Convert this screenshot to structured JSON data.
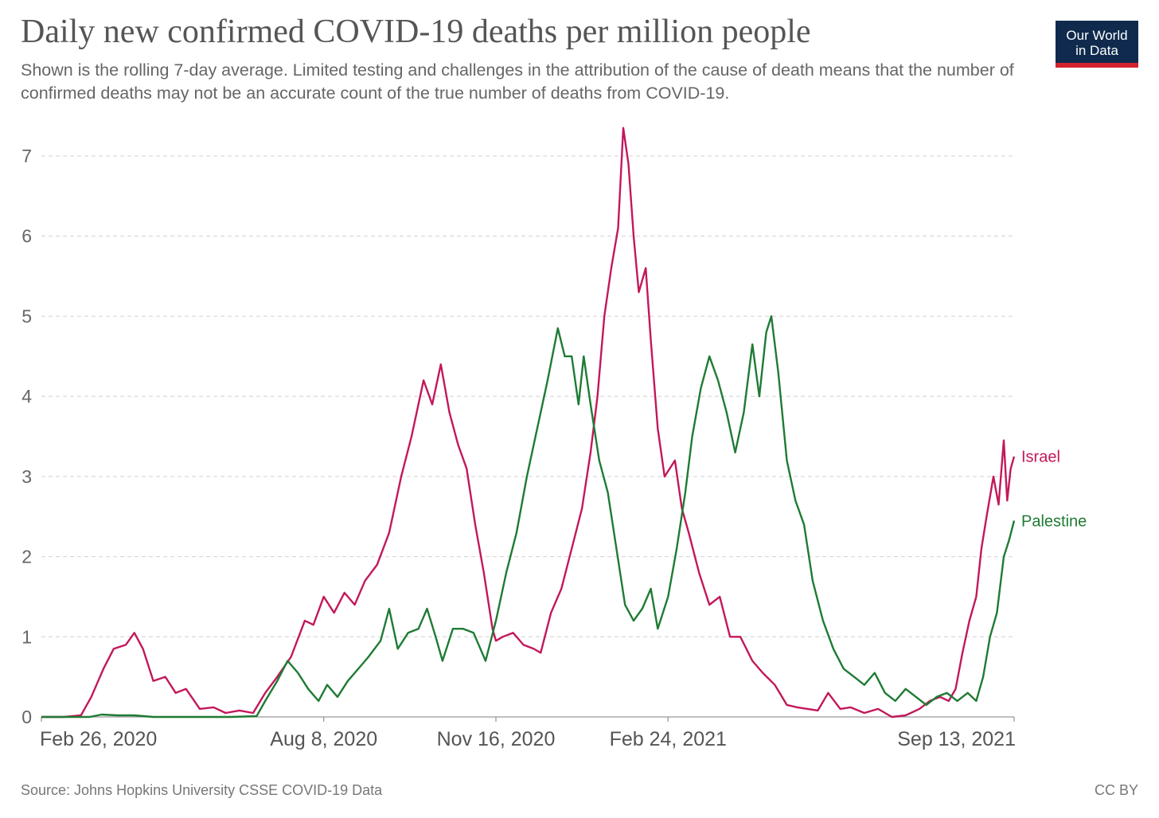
{
  "header": {
    "title": "Daily new confirmed COVID-19 deaths per million people",
    "subtitle": "Shown is the rolling 7-day average. Limited testing and challenges in the attribution of the cause of death means that the number of confirmed deaths may not be an accurate count of the true number of deaths from COVID-19.",
    "logo_line1": "Our World",
    "logo_line2": "in Data"
  },
  "footer": {
    "source": "Source: Johns Hopkins University CSSE COVID-19 Data",
    "license": "CC BY"
  },
  "colors": {
    "israel": "#c2185b",
    "palestine": "#1e7b34",
    "grid": "#d9d9d9",
    "axis": "#999999",
    "logo_bg": "#0f2a4d",
    "logo_bar": "#d3212e"
  },
  "chart_data": {
    "type": "line",
    "title": "Daily new confirmed COVID-19 deaths per million people",
    "subtitle": "Shown is the rolling 7-day average. Limited testing and challenges in the attribution of the cause of death means that the number of confirmed deaths may not be an accurate count of the true number of deaths from COVID-19.",
    "xlabel": "",
    "ylabel": "",
    "x_range": [
      "2020-02-26",
      "2021-09-13"
    ],
    "ylim": [
      0,
      7
    ],
    "y_ticks": [
      0,
      1,
      2,
      3,
      4,
      5,
      6,
      7
    ],
    "x_ticks": [
      {
        "date": "2020-02-26",
        "label": "Feb 26, 2020"
      },
      {
        "date": "2020-08-08",
        "label": "Aug 8, 2020"
      },
      {
        "date": "2020-11-16",
        "label": "Nov 16, 2020"
      },
      {
        "date": "2021-02-24",
        "label": "Feb 24, 2021"
      },
      {
        "date": "2021-09-13",
        "label": "Sep 13, 2021"
      }
    ],
    "grid": "horizontal dashed",
    "legend": "inline labels at line ends (right)",
    "series": [
      {
        "name": "Israel",
        "points": [
          [
            "2020-02-26",
            0
          ],
          [
            "2020-03-10",
            0
          ],
          [
            "2020-03-20",
            0.02
          ],
          [
            "2020-03-26",
            0.25
          ],
          [
            "2020-04-02",
            0.6
          ],
          [
            "2020-04-08",
            0.85
          ],
          [
            "2020-04-15",
            0.9
          ],
          [
            "2020-04-20",
            1.05
          ],
          [
            "2020-04-25",
            0.85
          ],
          [
            "2020-05-01",
            0.45
          ],
          [
            "2020-05-08",
            0.5
          ],
          [
            "2020-05-14",
            0.3
          ],
          [
            "2020-05-20",
            0.35
          ],
          [
            "2020-05-28",
            0.1
          ],
          [
            "2020-06-05",
            0.12
          ],
          [
            "2020-06-12",
            0.05
          ],
          [
            "2020-06-20",
            0.08
          ],
          [
            "2020-06-28",
            0.05
          ],
          [
            "2020-07-05",
            0.3
          ],
          [
            "2020-07-12",
            0.5
          ],
          [
            "2020-07-20",
            0.75
          ],
          [
            "2020-07-28",
            1.2
          ],
          [
            "2020-08-02",
            1.15
          ],
          [
            "2020-08-08",
            1.5
          ],
          [
            "2020-08-14",
            1.3
          ],
          [
            "2020-08-20",
            1.55
          ],
          [
            "2020-08-26",
            1.4
          ],
          [
            "2020-09-01",
            1.7
          ],
          [
            "2020-09-08",
            1.9
          ],
          [
            "2020-09-15",
            2.3
          ],
          [
            "2020-09-22",
            3.0
          ],
          [
            "2020-09-28",
            3.5
          ],
          [
            "2020-10-05",
            4.2
          ],
          [
            "2020-10-10",
            3.9
          ],
          [
            "2020-10-15",
            4.4
          ],
          [
            "2020-10-20",
            3.8
          ],
          [
            "2020-10-25",
            3.4
          ],
          [
            "2020-10-30",
            3.1
          ],
          [
            "2020-11-04",
            2.4
          ],
          [
            "2020-11-09",
            1.8
          ],
          [
            "2020-11-14",
            1.1
          ],
          [
            "2020-11-16",
            0.95
          ],
          [
            "2020-11-20",
            1.0
          ],
          [
            "2020-11-26",
            1.05
          ],
          [
            "2020-12-02",
            0.9
          ],
          [
            "2020-12-08",
            0.85
          ],
          [
            "2020-12-12",
            0.8
          ],
          [
            "2020-12-18",
            1.3
          ],
          [
            "2020-12-24",
            1.6
          ],
          [
            "2020-12-30",
            2.1
          ],
          [
            "2021-01-05",
            2.6
          ],
          [
            "2021-01-10",
            3.3
          ],
          [
            "2021-01-14",
            4.0
          ],
          [
            "2021-01-18",
            5.0
          ],
          [
            "2021-01-22",
            5.6
          ],
          [
            "2021-01-26",
            6.1
          ],
          [
            "2021-01-29",
            7.35
          ],
          [
            "2021-02-01",
            6.9
          ],
          [
            "2021-02-04",
            6.0
          ],
          [
            "2021-02-07",
            5.3
          ],
          [
            "2021-02-11",
            5.6
          ],
          [
            "2021-02-14",
            4.7
          ],
          [
            "2021-02-18",
            3.6
          ],
          [
            "2021-02-22",
            3.0
          ],
          [
            "2021-02-28",
            3.2
          ],
          [
            "2021-03-04",
            2.6
          ],
          [
            "2021-03-08",
            2.3
          ],
          [
            "2021-03-14",
            1.8
          ],
          [
            "2021-03-20",
            1.4
          ],
          [
            "2021-03-26",
            1.5
          ],
          [
            "2021-04-01",
            1.0
          ],
          [
            "2021-04-07",
            1.0
          ],
          [
            "2021-04-14",
            0.7
          ],
          [
            "2021-04-20",
            0.55
          ],
          [
            "2021-04-27",
            0.4
          ],
          [
            "2021-05-04",
            0.15
          ],
          [
            "2021-05-10",
            0.12
          ],
          [
            "2021-05-16",
            0.1
          ],
          [
            "2021-05-22",
            0.08
          ],
          [
            "2021-05-28",
            0.3
          ],
          [
            "2021-06-04",
            0.1
          ],
          [
            "2021-06-10",
            0.12
          ],
          [
            "2021-06-18",
            0.05
          ],
          [
            "2021-06-26",
            0.1
          ],
          [
            "2021-07-04",
            0.0
          ],
          [
            "2021-07-12",
            0.02
          ],
          [
            "2021-07-20",
            0.1
          ],
          [
            "2021-07-26",
            0.2
          ],
          [
            "2021-08-01",
            0.25
          ],
          [
            "2021-08-06",
            0.2
          ],
          [
            "2021-08-10",
            0.35
          ],
          [
            "2021-08-14",
            0.8
          ],
          [
            "2021-08-18",
            1.2
          ],
          [
            "2021-08-22",
            1.5
          ],
          [
            "2021-08-25",
            2.1
          ],
          [
            "2021-08-28",
            2.5
          ],
          [
            "2021-09-01",
            3.0
          ],
          [
            "2021-09-04",
            2.65
          ],
          [
            "2021-09-07",
            3.45
          ],
          [
            "2021-09-09",
            2.7
          ],
          [
            "2021-09-11",
            3.1
          ],
          [
            "2021-09-13",
            3.25
          ]
        ]
      },
      {
        "name": "Palestine",
        "points": [
          [
            "2020-02-26",
            0
          ],
          [
            "2020-03-25",
            0
          ],
          [
            "2020-04-01",
            0.03
          ],
          [
            "2020-04-10",
            0.02
          ],
          [
            "2020-04-20",
            0.02
          ],
          [
            "2020-05-01",
            0
          ],
          [
            "2020-06-15",
            0
          ],
          [
            "2020-06-30",
            0.01
          ],
          [
            "2020-07-05",
            0.2
          ],
          [
            "2020-07-12",
            0.45
          ],
          [
            "2020-07-18",
            0.7
          ],
          [
            "2020-07-24",
            0.55
          ],
          [
            "2020-07-30",
            0.35
          ],
          [
            "2020-08-05",
            0.2
          ],
          [
            "2020-08-10",
            0.4
          ],
          [
            "2020-08-16",
            0.25
          ],
          [
            "2020-08-22",
            0.45
          ],
          [
            "2020-08-28",
            0.6
          ],
          [
            "2020-09-03",
            0.75
          ],
          [
            "2020-09-10",
            0.95
          ],
          [
            "2020-09-15",
            1.35
          ],
          [
            "2020-09-20",
            0.85
          ],
          [
            "2020-09-26",
            1.05
          ],
          [
            "2020-10-02",
            1.1
          ],
          [
            "2020-10-07",
            1.35
          ],
          [
            "2020-10-12",
            1.0
          ],
          [
            "2020-10-16",
            0.7
          ],
          [
            "2020-10-22",
            1.1
          ],
          [
            "2020-10-28",
            1.1
          ],
          [
            "2020-11-03",
            1.05
          ],
          [
            "2020-11-10",
            0.7
          ],
          [
            "2020-11-16",
            1.2
          ],
          [
            "2020-11-22",
            1.8
          ],
          [
            "2020-11-28",
            2.3
          ],
          [
            "2020-12-04",
            3.0
          ],
          [
            "2020-12-10",
            3.6
          ],
          [
            "2020-12-16",
            4.2
          ],
          [
            "2020-12-22",
            4.85
          ],
          [
            "2020-12-26",
            4.5
          ],
          [
            "2020-12-30",
            4.5
          ],
          [
            "2021-01-03",
            3.9
          ],
          [
            "2021-01-06",
            4.5
          ],
          [
            "2021-01-10",
            3.9
          ],
          [
            "2021-01-15",
            3.2
          ],
          [
            "2021-01-20",
            2.8
          ],
          [
            "2021-01-25",
            2.1
          ],
          [
            "2021-01-30",
            1.4
          ],
          [
            "2021-02-04",
            1.2
          ],
          [
            "2021-02-09",
            1.35
          ],
          [
            "2021-02-14",
            1.6
          ],
          [
            "2021-02-18",
            1.1
          ],
          [
            "2021-02-24",
            1.5
          ],
          [
            "2021-03-01",
            2.1
          ],
          [
            "2021-03-06",
            2.8
          ],
          [
            "2021-03-10",
            3.5
          ],
          [
            "2021-03-15",
            4.1
          ],
          [
            "2021-03-20",
            4.5
          ],
          [
            "2021-03-25",
            4.2
          ],
          [
            "2021-03-30",
            3.8
          ],
          [
            "2021-04-04",
            3.3
          ],
          [
            "2021-04-09",
            3.8
          ],
          [
            "2021-04-14",
            4.65
          ],
          [
            "2021-04-18",
            4.0
          ],
          [
            "2021-04-22",
            4.8
          ],
          [
            "2021-04-25",
            5.0
          ],
          [
            "2021-04-29",
            4.3
          ],
          [
            "2021-05-04",
            3.2
          ],
          [
            "2021-05-09",
            2.7
          ],
          [
            "2021-05-14",
            2.4
          ],
          [
            "2021-05-19",
            1.7
          ],
          [
            "2021-05-25",
            1.2
          ],
          [
            "2021-05-31",
            0.85
          ],
          [
            "2021-06-06",
            0.6
          ],
          [
            "2021-06-12",
            0.5
          ],
          [
            "2021-06-18",
            0.4
          ],
          [
            "2021-06-24",
            0.55
          ],
          [
            "2021-06-30",
            0.3
          ],
          [
            "2021-07-06",
            0.2
          ],
          [
            "2021-07-12",
            0.35
          ],
          [
            "2021-07-18",
            0.25
          ],
          [
            "2021-07-24",
            0.15
          ],
          [
            "2021-07-30",
            0.25
          ],
          [
            "2021-08-05",
            0.3
          ],
          [
            "2021-08-11",
            0.2
          ],
          [
            "2021-08-17",
            0.3
          ],
          [
            "2021-08-22",
            0.2
          ],
          [
            "2021-08-26",
            0.5
          ],
          [
            "2021-08-30",
            1.0
          ],
          [
            "2021-09-03",
            1.3
          ],
          [
            "2021-09-07",
            2.0
          ],
          [
            "2021-09-10",
            2.2
          ],
          [
            "2021-09-13",
            2.45
          ]
        ]
      }
    ]
  }
}
